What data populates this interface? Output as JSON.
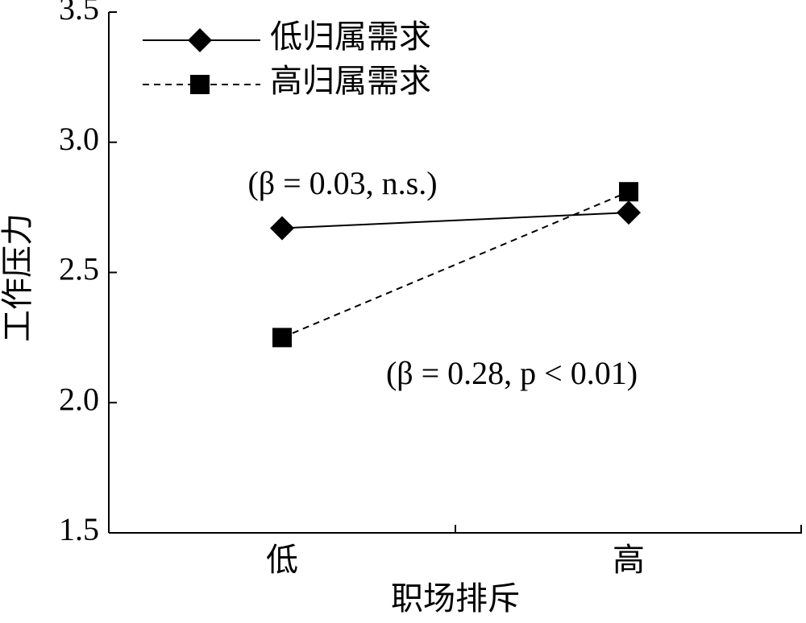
{
  "chart_data": {
    "type": "line",
    "categories": [
      "低",
      "高"
    ],
    "series": [
      {
        "name": "低归属需求",
        "color": "#000000",
        "marker": "diamond",
        "dash": "solid",
        "values": [
          2.67,
          2.73
        ]
      },
      {
        "name": "高归属需求",
        "color": "#000000",
        "marker": "square",
        "dash": "dashed",
        "values": [
          2.25,
          2.81
        ]
      }
    ],
    "xlabel": "职场排斥",
    "ylabel": "工作压力",
    "ylim": [
      1.5,
      3.5
    ],
    "yticks": [
      1.5,
      {
        "value": 2.0,
        "label": "2.0"
      },
      2.5,
      {
        "value": 3.0,
        "label": "3.0"
      },
      3.5
    ],
    "annotations": [
      "(β = 0.03, n.s.)",
      "(β = 0.28, p < 0.01)"
    ],
    "legend": "upper-left"
  }
}
